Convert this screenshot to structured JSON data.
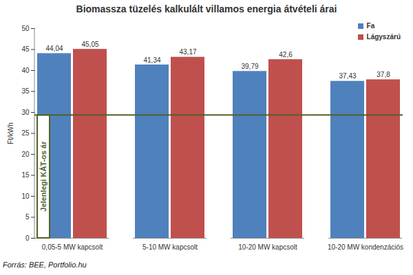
{
  "chart_data": {
    "type": "bar",
    "title": "Biomassza tüzelés kalkulált villamos energia átvételi árai",
    "ylabel": "Ft/kWh",
    "categories": [
      "0,05-5 MW kapcsolt",
      "5-10 MW kapcsolt",
      "10-20 MW kapcsolt",
      "10-20 MW kondenzációs"
    ],
    "series": [
      {
        "name": "Fa",
        "color": "#4F81BD",
        "values": [
          44.04,
          41.34,
          39.79,
          37.43
        ],
        "value_labels": [
          "44,04",
          "41,34",
          "39,79",
          "37,43"
        ]
      },
      {
        "name": "Lágyszárú",
        "color": "#C0504D",
        "values": [
          45.05,
          43.17,
          42.6,
          37.8
        ],
        "value_labels": [
          "45,05",
          "43,17",
          "42,6",
          "37,8"
        ]
      }
    ],
    "ylim": [
      0,
      50
    ],
    "yticks": [
      0,
      5,
      10,
      15,
      20,
      25,
      30,
      35,
      40,
      45,
      50
    ],
    "grid": false,
    "legend": "upper right",
    "data_labels": true,
    "reference_line": {
      "value": 29.3,
      "label": "Jelenlegi KÁT-os ár"
    },
    "source": "Forrás: BEE, Portfolio.hu"
  }
}
